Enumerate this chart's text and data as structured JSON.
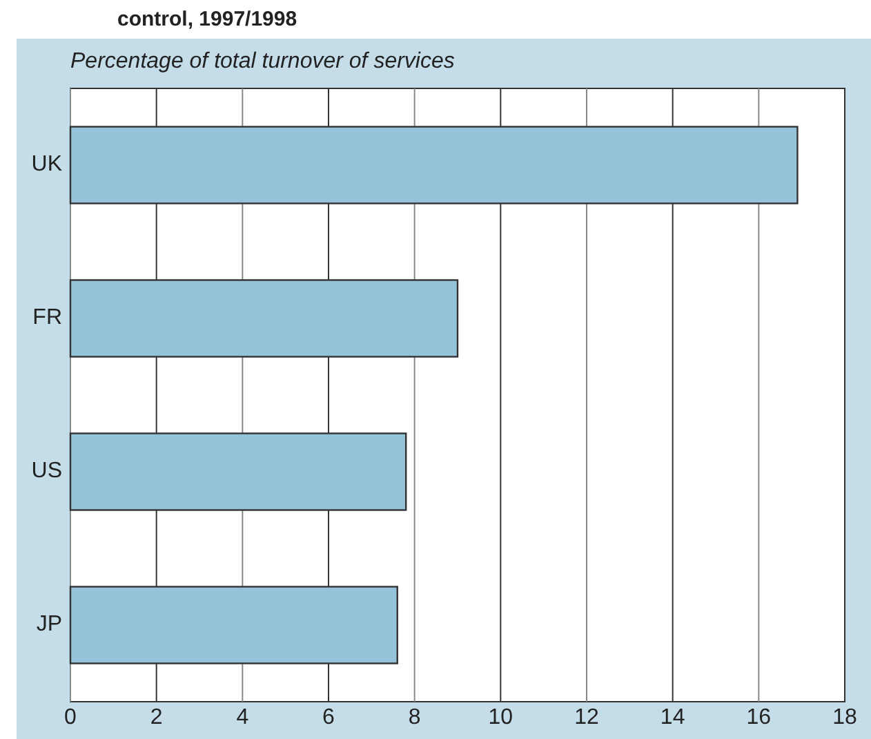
{
  "chart_data": {
    "type": "bar",
    "orientation": "horizontal",
    "title": "control, 1997/1998",
    "subtitle": "Percentage of total turnover of services",
    "categories": [
      "UK",
      "FR",
      "US",
      "JP"
    ],
    "values": [
      16.9,
      9.0,
      7.8,
      7.6
    ],
    "color": "#95c3da",
    "xlim": [
      0,
      18
    ],
    "xticks": [
      0,
      2,
      4,
      6,
      8,
      10,
      12,
      14,
      16,
      18
    ],
    "grid": "x"
  }
}
